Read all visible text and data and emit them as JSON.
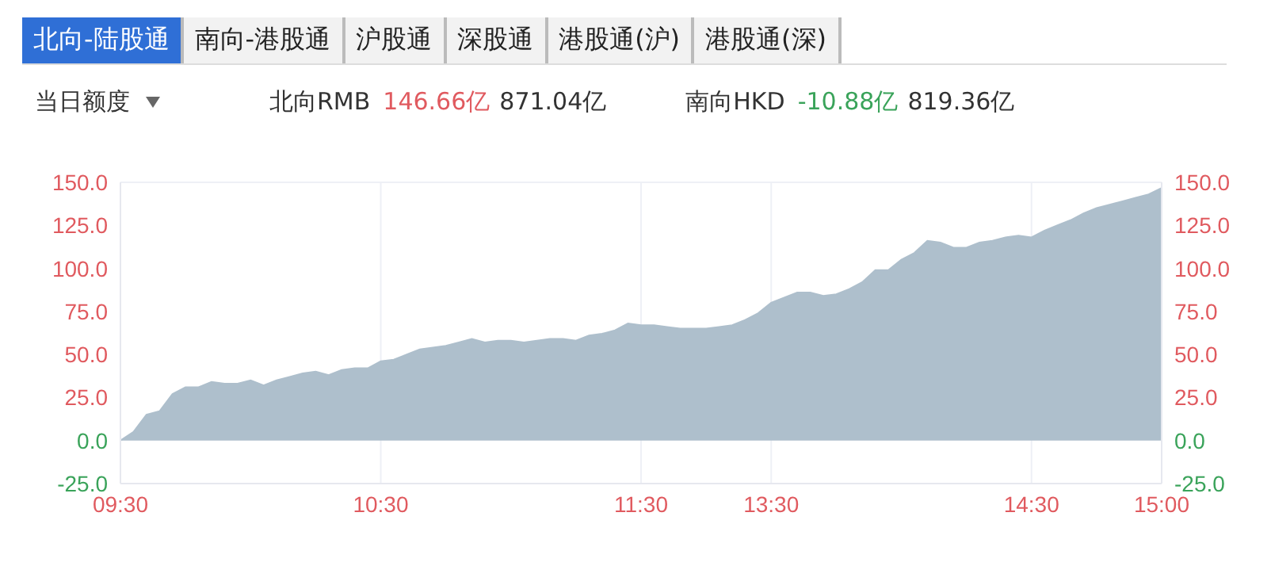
{
  "chart_data": {
    "type": "area",
    "annotations": [
      "北向-陆股通",
      "南向-港股通",
      "沪股通",
      "深股通",
      "港股通(沪)",
      "港股通(深)",
      "当日额度",
      "北向RMB",
      "146.66亿",
      "871.04亿",
      "南向HKD",
      "-10.88亿",
      "819.36亿"
    ],
    "categories": [
      "09:30",
      null,
      null,
      null,
      null,
      null,
      null,
      null,
      null,
      null,
      null,
      null,
      null,
      null,
      null,
      null,
      null,
      null,
      null,
      null,
      "10:30",
      null,
      null,
      null,
      null,
      null,
      null,
      null,
      null,
      null,
      null,
      null,
      null,
      null,
      null,
      null,
      null,
      null,
      null,
      null,
      "11:30",
      null,
      null,
      null,
      null,
      null,
      null,
      null,
      null,
      null,
      "13:30",
      null,
      null,
      null,
      null,
      null,
      null,
      null,
      null,
      null,
      null,
      null,
      null,
      null,
      null,
      null,
      null,
      null,
      null,
      null,
      "14:30",
      null,
      null,
      null,
      null,
      null,
      null,
      null,
      null,
      null,
      "15:00"
    ],
    "series": [
      {
        "color": "#aebfcc",
        "values": [
          0,
          5,
          15,
          17,
          27,
          31,
          31,
          34,
          33,
          33,
          35,
          32,
          35,
          37,
          39,
          40,
          38,
          41,
          42,
          42,
          46,
          47,
          50,
          53,
          54,
          55,
          57,
          59,
          57,
          58,
          58,
          57,
          58,
          59,
          59,
          58,
          61,
          62,
          64,
          68,
          67,
          67,
          66,
          65,
          65,
          65,
          66,
          67,
          70,
          74,
          80,
          83,
          86,
          86,
          84,
          85,
          88,
          92,
          99,
          99,
          105,
          109,
          116,
          115,
          112,
          112,
          115,
          116,
          118,
          119,
          118,
          122,
          125,
          128,
          132,
          135,
          137,
          139,
          141,
          143,
          146.66
        ]
      }
    ],
    "ylim": [
      -25,
      150
    ],
    "yticks": [
      {
        "value": -25,
        "label": "-25.0"
      },
      {
        "value": 0,
        "label": "0.0"
      },
      {
        "value": 25,
        "label": "25.0"
      },
      {
        "value": 50,
        "label": "50.0"
      },
      {
        "value": 75,
        "label": "75.0"
      },
      {
        "value": 100,
        "label": "100.0"
      },
      {
        "value": 125,
        "label": "125.0"
      },
      {
        "value": 150,
        "label": "150.0"
      }
    ],
    "y2lim": [
      -25,
      150
    ],
    "y2ticks": [
      {
        "value": -25,
        "label": "-25.0"
      },
      {
        "value": 0,
        "label": "0.0"
      },
      {
        "value": 25,
        "label": "25.0"
      },
      {
        "value": 50,
        "label": "50.0"
      },
      {
        "value": 75,
        "label": "75.0"
      },
      {
        "value": 100,
        "label": "100.0"
      },
      {
        "value": 125,
        "label": "125.0"
      },
      {
        "value": 150,
        "label": "150.0"
      }
    ],
    "grid": true
  }
}
